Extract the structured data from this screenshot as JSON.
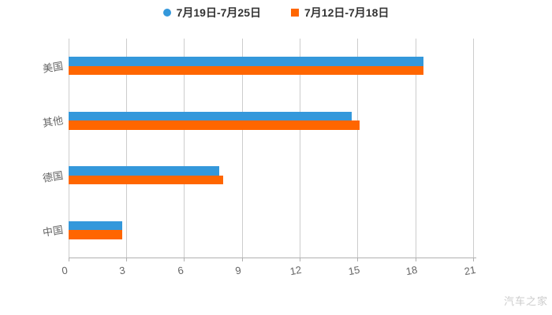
{
  "chart_data": {
    "type": "bar",
    "orientation": "horizontal",
    "title": "",
    "categories": [
      "美国",
      "其他",
      "德国",
      "中国"
    ],
    "series": [
      {
        "name": "7月19日-7月25日",
        "marker": "circle",
        "color": "#3498db",
        "values": [
          18.4,
          14.7,
          7.8,
          2.8
        ]
      },
      {
        "name": "7月12日-7月18日",
        "marker": "square",
        "color": "#ff6600",
        "values": [
          18.4,
          15.1,
          8.0,
          2.8
        ]
      }
    ],
    "xlim": [
      0,
      21
    ],
    "xticks": [
      "0",
      "3",
      "6",
      "9",
      "12",
      "15",
      "18",
      "21"
    ],
    "grid": true,
    "legend_position": "top",
    "background": "#ffffff",
    "text_colors": {
      "axis": "#666666",
      "legend": "#333333"
    }
  },
  "watermark": {
    "text": "汽车之家",
    "color": "#cccccc"
  }
}
